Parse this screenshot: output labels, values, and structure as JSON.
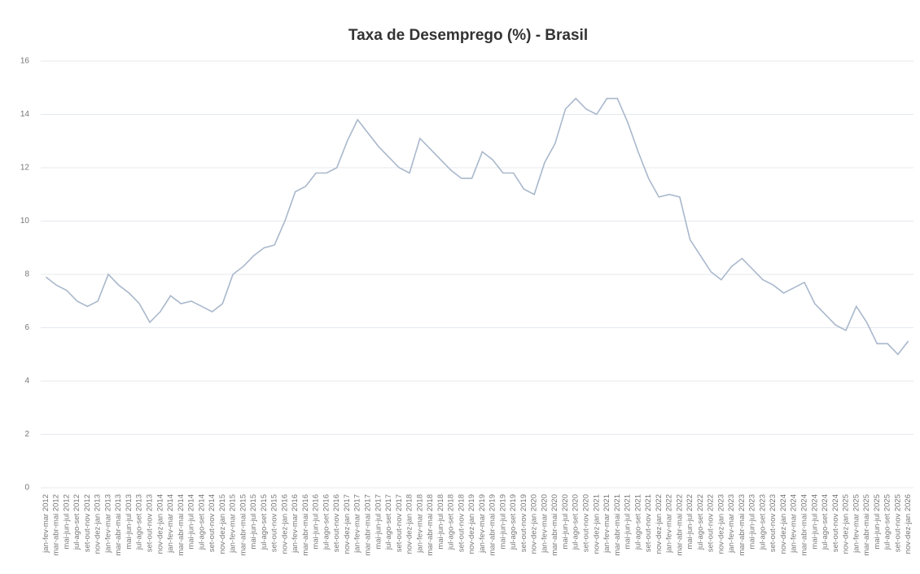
{
  "chart_data": {
    "type": "line",
    "title": "Taxa de Desemprego (%) - Brasil",
    "categories": [
      "jan-fev-mar 2012",
      "mar-abr-mai 2012",
      "mai-jun-jul 2012",
      "jul-ago-set 2012",
      "set-out-nov 2012",
      "nov-dez-jan 2013",
      "jan-fev-mar 2013",
      "mar-abr-mai 2013",
      "mai-jun-jul 2013",
      "jul-ago-set 2013",
      "set-out-nov 2013",
      "nov-dez-jan 2014",
      "jan-fev-mar 2014",
      "mar-abr-mai 2014",
      "mai-jun-jul 2014",
      "jul-ago-set 2014",
      "set-out-nov 2014",
      "nov-dez-jan 2015",
      "jan-fev-mar 2015",
      "mar-abr-mai 2015",
      "mai-jun-jul 2015",
      "jul-ago-set 2015",
      "set-out-nov 2015",
      "nov-dez-jan 2016",
      "jan-fev-mar 2016",
      "mar-abr-mai 2016",
      "mai-jun-jul 2016",
      "jul-ago-set 2016",
      "set-out-nov 2016",
      "nov-dez-jan 2017",
      "jan-fev-mar 2017",
      "mar-abr-mai 2017",
      "mai-jun-jul 2017",
      "jul-ago-set 2017",
      "set-out-nov 2017",
      "nov-dez-jan 2018",
      "jan-fev-mar 2018",
      "mar-abr-mai 2018",
      "mai-jun-jul 2018",
      "jul-ago-set 2018",
      "set-out-nov 2018",
      "nov-dez-jan 2019",
      "jan-fev-mar 2019",
      "mar-abr-mai 2019",
      "mai-jun-jul 2019",
      "jul-ago-set 2019",
      "set-out-nov 2019",
      "nov-dez-jan 2020",
      "jan-fev-mar 2020",
      "mar-abr-mai 2020",
      "mai-jun-jul 2020",
      "jul-ago-set 2020",
      "set-out-nov 2020",
      "nov-dez-jan 2021",
      "jan-fev-mar 2021",
      "mar-abr-mai 2021",
      "mai-jun-jul 2021",
      "jul-ago-set 2021",
      "set-out-nov 2021",
      "nov-dez-jan 2022",
      "jan-fev-mar 2022",
      "mar-abr-mai 2022",
      "mai-jun-jul 2022",
      "jul-ago-set 2022",
      "set-out-nov 2022",
      "nov-dez-jan 2023",
      "jan-fev-mar 2023",
      "mar-abr-mai 2023",
      "mai-jun-jul 2023",
      "jul-ago-set 2023",
      "set-out-nov 2023",
      "nov-dez-jan 2024",
      "jan-fev-mar 2024",
      "mar-abr-mai 2024",
      "mai-jun-jul 2024",
      "jul-ago-set 2024",
      "set-out-nov 2024",
      "nov-dez-jan 2025",
      "jan-fev-mar 2025",
      "mar-abr-mai 2025",
      "mai-jun-jul 2025",
      "jul-ago-set 2025",
      "set-out-nov 2025",
      "nov-dez-jan 2026"
    ],
    "values": [
      7.9,
      7.6,
      7.4,
      7.0,
      6.8,
      7.0,
      8.0,
      7.6,
      7.3,
      6.9,
      6.2,
      6.6,
      7.2,
      6.9,
      7.0,
      6.8,
      6.6,
      6.9,
      8.0,
      8.3,
      8.7,
      9.0,
      9.1,
      10.0,
      11.1,
      11.3,
      11.8,
      11.8,
      12.0,
      13.0,
      13.8,
      13.3,
      12.8,
      12.4,
      12.0,
      11.8,
      13.1,
      12.7,
      12.3,
      11.9,
      11.6,
      11.6,
      12.6,
      12.3,
      11.8,
      11.8,
      11.2,
      11.0,
      12.2,
      12.9,
      14.2,
      14.6,
      14.2,
      14.0,
      14.6,
      14.6,
      13.7,
      12.6,
      11.6,
      10.9,
      11.0,
      10.9,
      9.3,
      8.7,
      8.1,
      7.8,
      8.3,
      8.6,
      8.2,
      7.8,
      7.6,
      7.3,
      7.5,
      7.7,
      6.9,
      6.5,
      6.1,
      5.9,
      6.8,
      6.2,
      5.4,
      5.4,
      5.0,
      5.5
    ],
    "color": "#a9b8cc",
    "ylim": [
      0,
      16
    ],
    "yticks": [
      0,
      2,
      4,
      6,
      8,
      10,
      12,
      14,
      16
    ],
    "grid": true
  }
}
